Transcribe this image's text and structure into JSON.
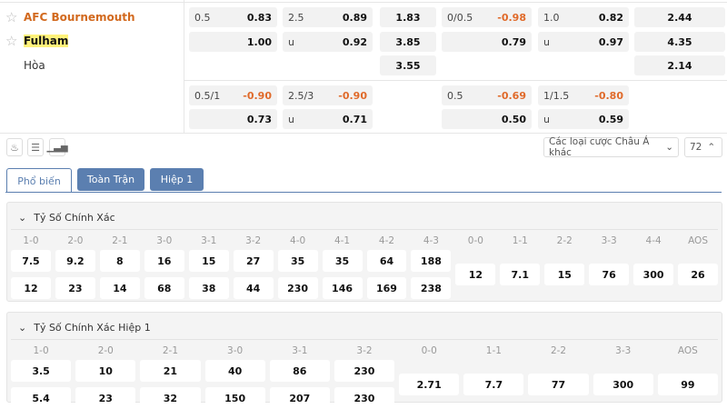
{
  "teams": [
    {
      "name": "AFC Bournemouth",
      "highlight": false
    },
    {
      "name": "Fulham",
      "highlight": true
    },
    {
      "name": "Hòa"
    }
  ],
  "odds_main": [
    {
      "col": "handicap",
      "rows": [
        {
          "line": "0.5",
          "value": "0.83"
        },
        {
          "line": "",
          "value": "1.00"
        }
      ]
    },
    {
      "col": "over_under",
      "rows": [
        {
          "line": "2.5",
          "value": "0.89"
        },
        {
          "line": "u",
          "value": "0.92"
        }
      ]
    },
    {
      "col": "1x2",
      "rows": [
        "1.83",
        "3.85",
        "3.55"
      ]
    },
    {
      "col": "h1_handicap",
      "rows": [
        {
          "line": "0/0.5",
          "value": "-0.98"
        },
        {
          "line": "",
          "value": "0.79"
        }
      ]
    },
    {
      "col": "h1_over_under",
      "rows": [
        {
          "line": "1.0",
          "value": "0.82"
        },
        {
          "line": "u",
          "value": "0.97"
        }
      ]
    },
    {
      "col": "h1_1x2",
      "rows": [
        "2.44",
        "4.35",
        "2.14"
      ]
    }
  ],
  "odds_alt": [
    {
      "rows": [
        {
          "line": "0.5/1",
          "value": "-0.90"
        },
        {
          "line": "",
          "value": "0.73"
        }
      ]
    },
    {
      "rows": [
        {
          "line": "2.5/3",
          "value": "-0.90"
        },
        {
          "line": "u",
          "value": "0.71"
        }
      ]
    },
    {
      "rows": [
        {
          "line": "0.5",
          "value": "-0.69"
        },
        {
          "line": "",
          "value": "0.50"
        }
      ]
    },
    {
      "rows": [
        {
          "line": "1/1.5",
          "value": "-0.80"
        },
        {
          "line": "u",
          "value": "0.59"
        }
      ]
    }
  ],
  "toolbar": {
    "icons": [
      "fire-icon",
      "list-icon",
      "chart-icon"
    ],
    "market_select": "Các loại cược Châu Á khác",
    "count": "72"
  },
  "tabs": [
    {
      "label": "Phổ biến",
      "active": true
    },
    {
      "label": "Toàn Trận"
    },
    {
      "label": "Hiệp 1"
    }
  ],
  "sections": [
    {
      "title": "Tỷ Số Chính Xác",
      "pairs": [
        {
          "label": "1-0",
          "home": "7.5",
          "away": "12"
        },
        {
          "label": "2-0",
          "home": "9.2",
          "away": "23"
        },
        {
          "label": "2-1",
          "home": "8",
          "away": "14"
        },
        {
          "label": "3-0",
          "home": "16",
          "away": "68"
        },
        {
          "label": "3-1",
          "home": "15",
          "away": "38"
        },
        {
          "label": "3-2",
          "home": "27",
          "away": "44"
        },
        {
          "label": "4-0",
          "home": "35",
          "away": "230"
        },
        {
          "label": "4-1",
          "home": "35",
          "away": "146"
        },
        {
          "label": "4-2",
          "home": "64",
          "away": "169"
        },
        {
          "label": "4-3",
          "home": "188",
          "away": "238"
        }
      ],
      "singles": [
        {
          "label": "0-0",
          "value": "12"
        },
        {
          "label": "1-1",
          "value": "7.1"
        },
        {
          "label": "2-2",
          "value": "15"
        },
        {
          "label": "3-3",
          "value": "76"
        },
        {
          "label": "4-4",
          "value": "300"
        },
        {
          "label": "AOS",
          "value": "26"
        }
      ]
    },
    {
      "title": "Tỷ Số Chính Xác Hiệp 1",
      "pairs": [
        {
          "label": "1-0",
          "home": "3.5",
          "away": "5.4"
        },
        {
          "label": "2-0",
          "home": "10",
          "away": "23"
        },
        {
          "label": "2-1",
          "home": "21",
          "away": "32"
        },
        {
          "label": "3-0",
          "home": "40",
          "away": "150"
        },
        {
          "label": "3-1",
          "home": "86",
          "away": "207"
        },
        {
          "label": "3-2",
          "home": "230",
          "away": "230"
        }
      ],
      "singles": [
        {
          "label": "0-0",
          "value": "2.71"
        },
        {
          "label": "1-1",
          "value": "7.7"
        },
        {
          "label": "2-2",
          "value": "77"
        },
        {
          "label": "3-3",
          "value": "300"
        },
        {
          "label": "AOS",
          "value": "99"
        }
      ]
    }
  ],
  "colors": {
    "accent": "#5b7fb0",
    "home_team": "#d2691e",
    "negative_odds": "#e06a2a",
    "highlight": "#fff27a"
  }
}
